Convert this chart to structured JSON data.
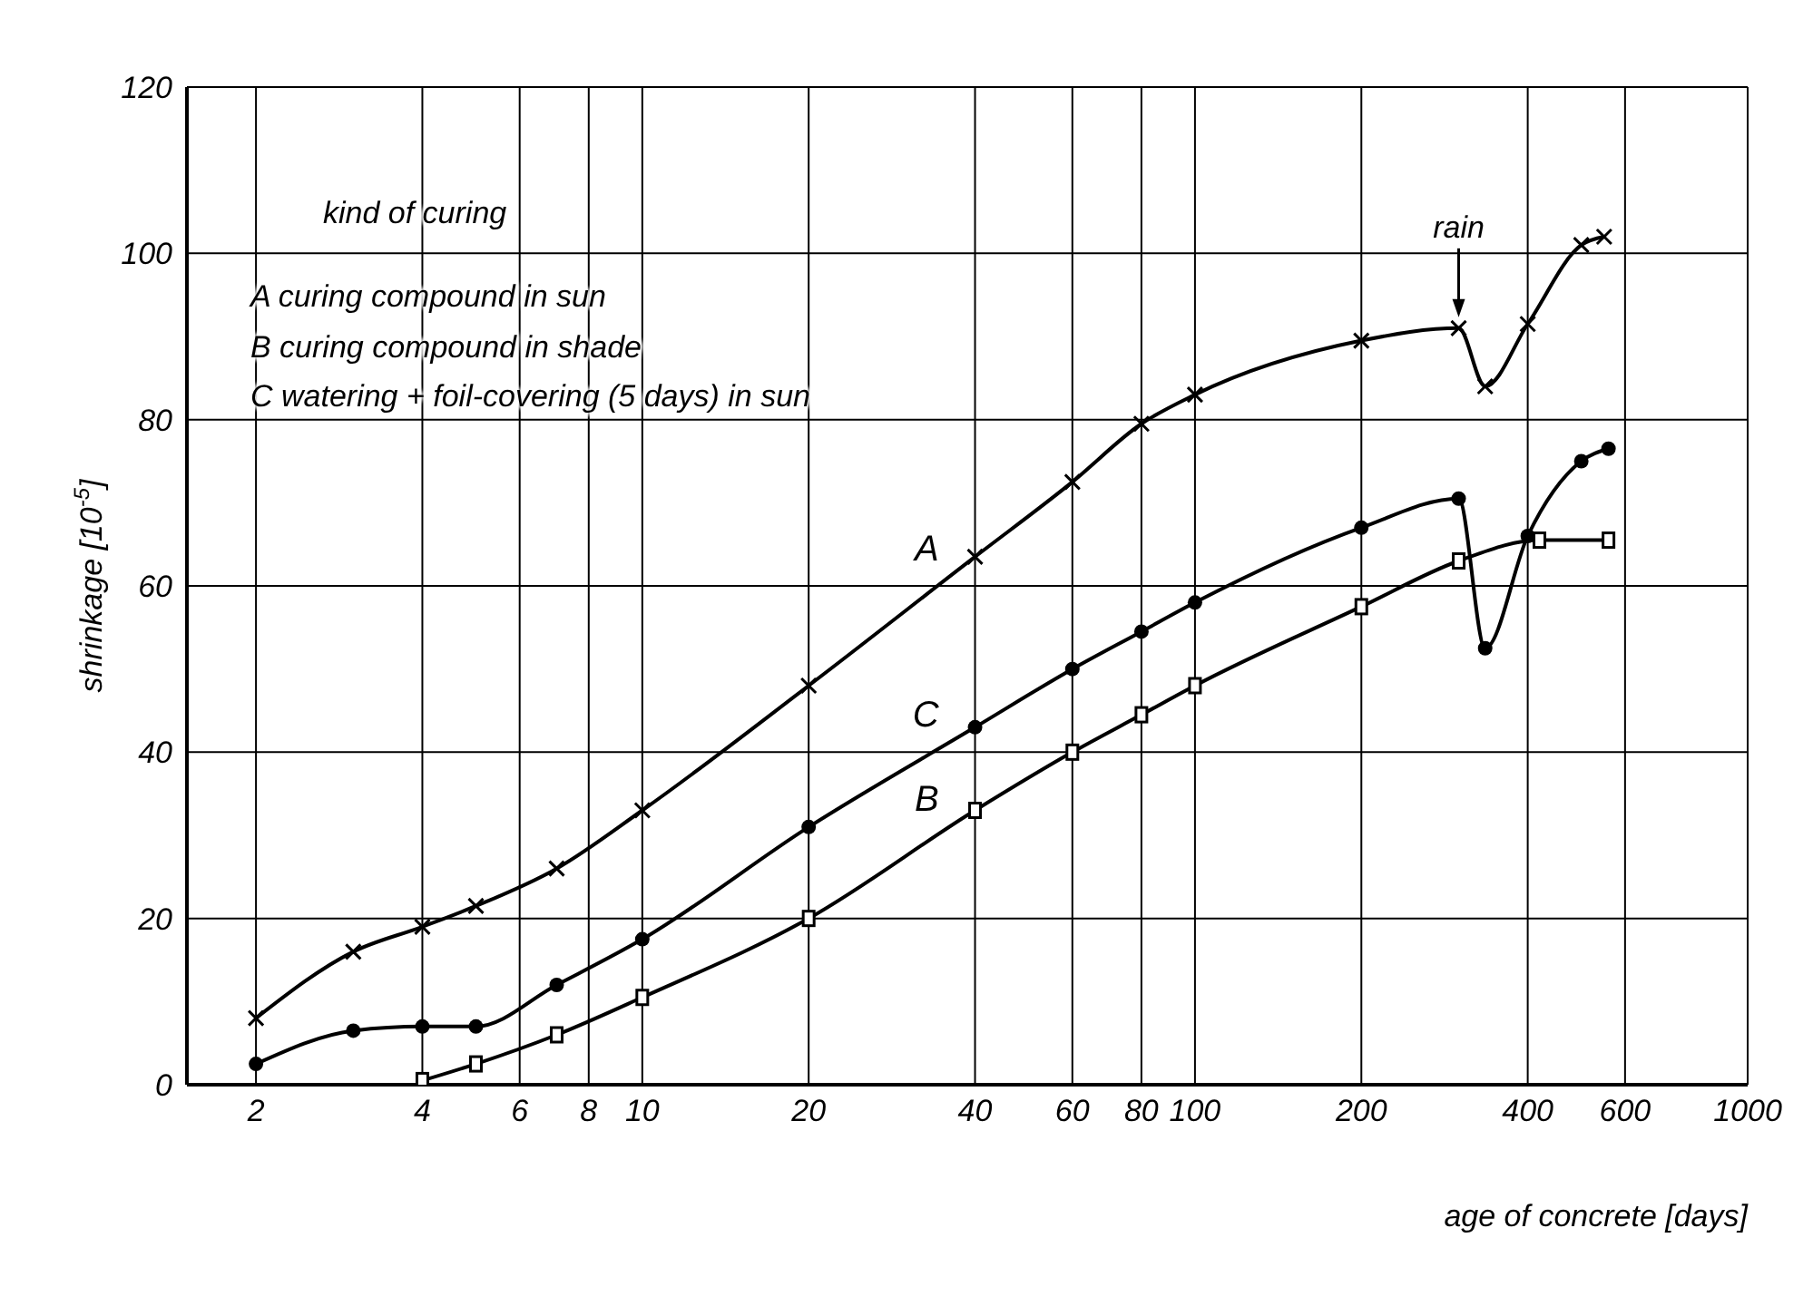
{
  "chart_data": {
    "type": "line",
    "xlabel": "age of concrete [days]",
    "ylabel": "shrinkage [10$^{-5}$]",
    "log": "x",
    "xlim": [
      1.5,
      1000
    ],
    "xticks": [
      2,
      4,
      6,
      8,
      10,
      20,
      40,
      60,
      80,
      100,
      200,
      400,
      600,
      1000
    ],
    "ylim": [
      0,
      120
    ],
    "yticks": [
      0,
      20,
      40,
      60,
      80,
      100,
      120
    ],
    "grid": true,
    "line_style": "solid",
    "series": [
      {
        "name": "A",
        "color": "#000000",
        "marker": "cross",
        "x": [
          2,
          3,
          4,
          5,
          7,
          10,
          20,
          40,
          60,
          80,
          100,
          200,
          300,
          335,
          400,
          500,
          550
        ],
        "values": [
          8,
          16,
          19,
          21.5,
          26,
          33,
          48,
          63.5,
          72.5,
          79.5,
          83,
          89.5,
          91,
          84,
          91.5,
          101,
          102
        ]
      },
      {
        "name": "B",
        "color": "#000000",
        "marker": "square",
        "x": [
          4,
          5,
          7,
          10,
          20,
          40,
          60,
          80,
          100,
          200,
          300,
          420,
          560
        ],
        "values": [
          0.5,
          2.5,
          6,
          10.5,
          20,
          33,
          40,
          44.5,
          48,
          57.5,
          63,
          65.5,
          65.5
        ]
      },
      {
        "name": "C",
        "color": "#000000",
        "marker": "circle",
        "x": [
          2,
          3,
          4,
          5,
          7,
          10,
          20,
          40,
          60,
          80,
          100,
          200,
          300,
          335,
          400,
          500,
          560
        ],
        "values": [
          2.5,
          6.5,
          7,
          7,
          12,
          17.5,
          31,
          43,
          50,
          54.5,
          58,
          67,
          70.5,
          52.5,
          66,
          75,
          76.5
        ]
      }
    ],
    "annotations": [
      "kind of curing",
      "A   curing compound in sun",
      "B   curing compound in shade",
      "C   watering + foil-covering (5 days) in sun",
      {
        "text": "rain",
        "x": 300,
        "y": 91
      }
    ]
  }
}
